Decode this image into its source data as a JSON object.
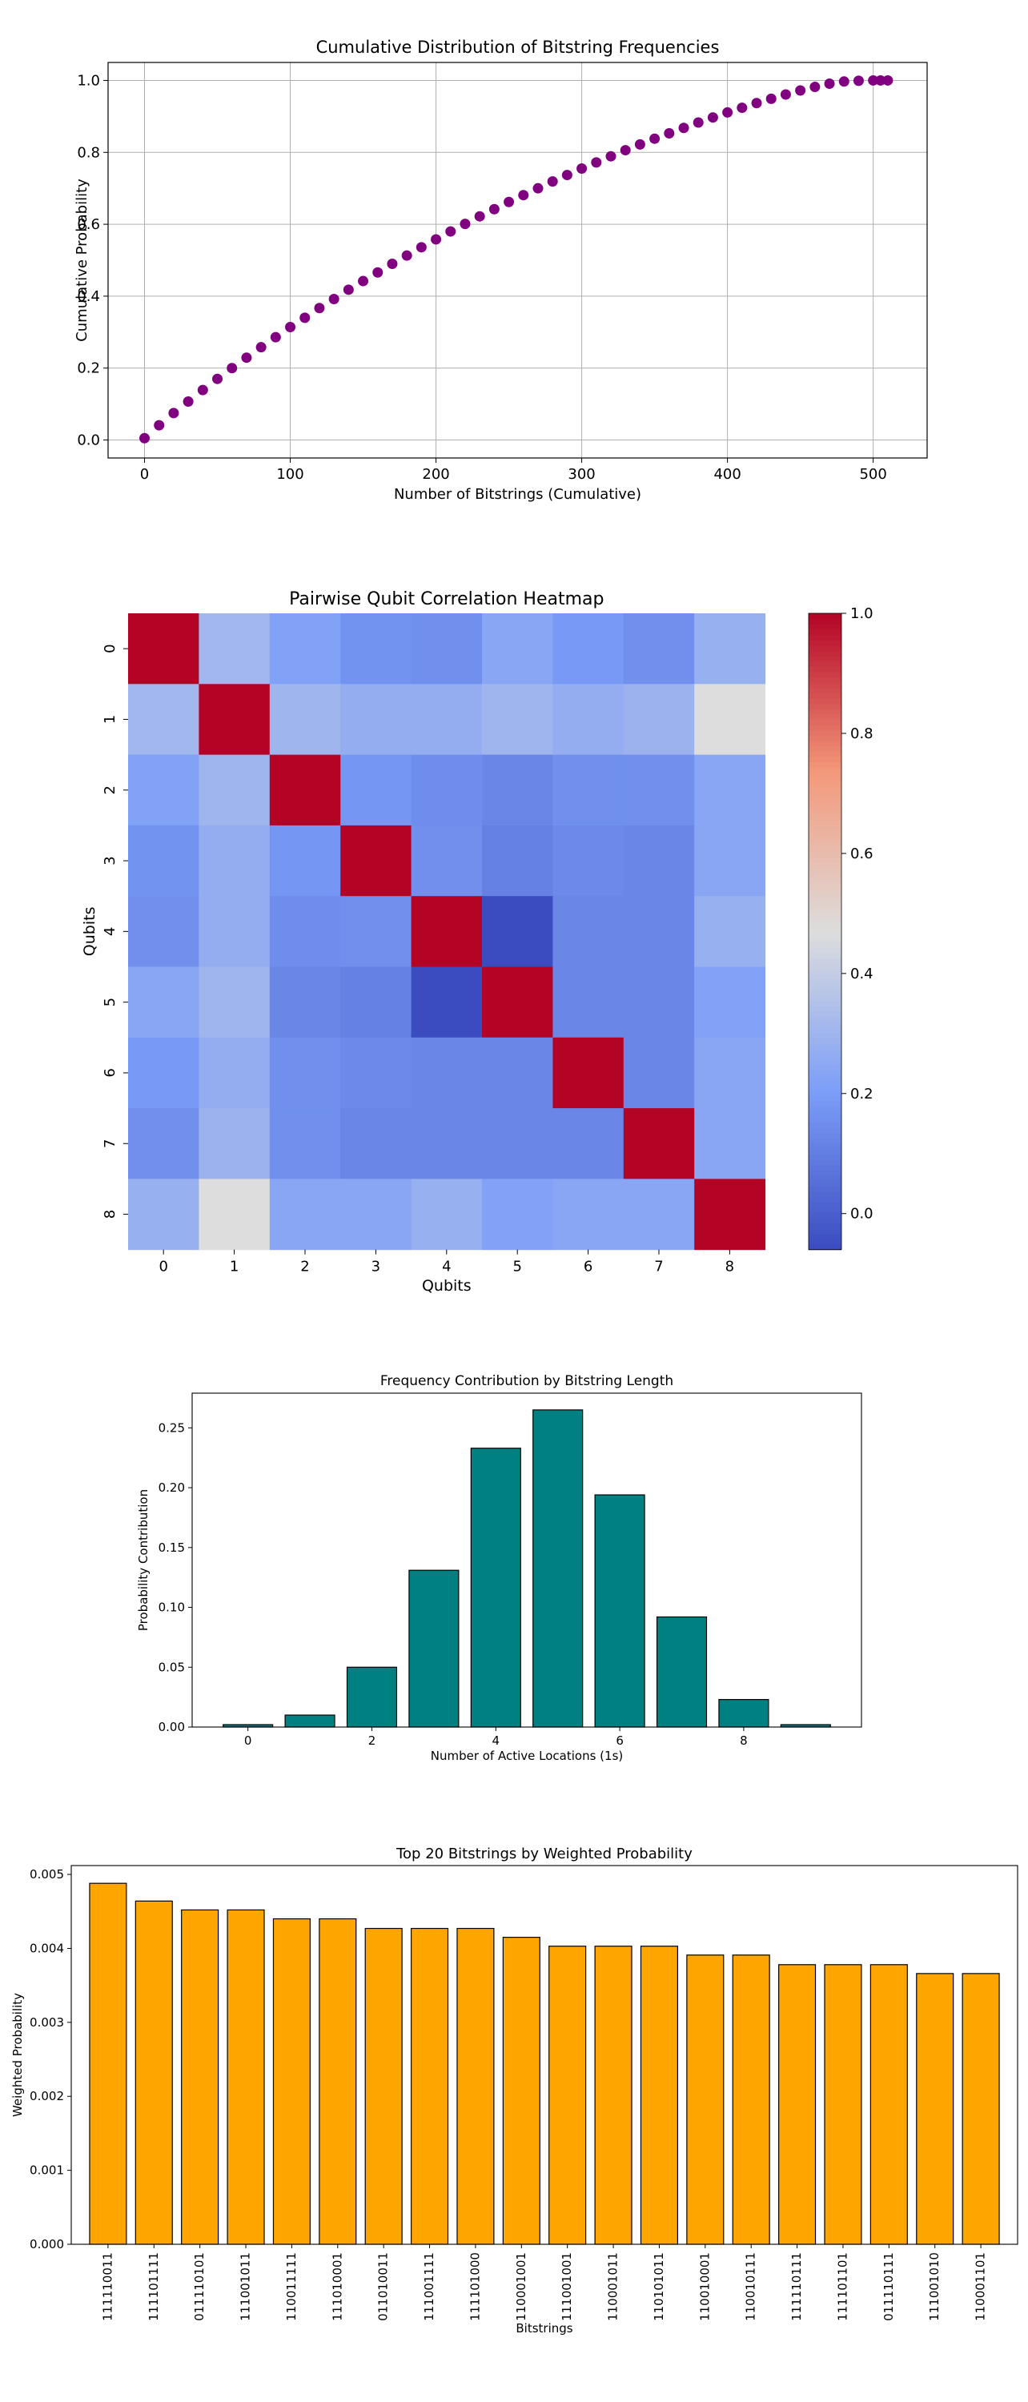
{
  "chart_data": [
    {
      "type": "scatter",
      "title": "Cumulative Distribution of Bitstring Frequencies",
      "xlabel": "Number of Bitstrings (Cumulative)",
      "ylabel": "Cumulative Probability",
      "xlim": [
        -25,
        537
      ],
      "ylim": [
        -0.05,
        1.05
      ],
      "xticks": [
        0,
        100,
        200,
        300,
        400,
        500
      ],
      "yticks": [
        0.0,
        0.2,
        0.4,
        0.6,
        0.8,
        1.0
      ],
      "xtick_labels": [
        "0",
        "100",
        "200",
        "300",
        "400",
        "500"
      ],
      "ytick_labels": [
        "0.0",
        "0.2",
        "0.4",
        "0.6",
        "0.8",
        "1.0"
      ],
      "grid": true,
      "color": "#800080",
      "x": [
        0,
        10,
        20,
        30,
        40,
        50,
        60,
        70,
        80,
        90,
        100,
        110,
        120,
        130,
        140,
        150,
        160,
        170,
        180,
        190,
        200,
        210,
        220,
        230,
        240,
        250,
        260,
        270,
        280,
        290,
        300,
        310,
        320,
        330,
        340,
        350,
        360,
        370,
        380,
        390,
        400,
        410,
        420,
        430,
        440,
        450,
        460,
        470,
        480,
        490,
        500,
        505,
        510
      ],
      "y": [
        0.005,
        0.041,
        0.075,
        0.107,
        0.139,
        0.17,
        0.2,
        0.229,
        0.258,
        0.286,
        0.314,
        0.34,
        0.367,
        0.392,
        0.418,
        0.442,
        0.466,
        0.49,
        0.513,
        0.536,
        0.558,
        0.58,
        0.601,
        0.622,
        0.642,
        0.662,
        0.681,
        0.7,
        0.719,
        0.737,
        0.755,
        0.772,
        0.789,
        0.806,
        0.822,
        0.838,
        0.853,
        0.868,
        0.883,
        0.897,
        0.911,
        0.924,
        0.937,
        0.949,
        0.961,
        0.972,
        0.982,
        0.991,
        0.997,
        0.999,
        1.0,
        1.0,
        1.0
      ]
    },
    {
      "type": "heatmap",
      "title": "Pairwise Qubit Correlation Heatmap",
      "xlabel": "Qubits",
      "ylabel": "Qubits",
      "xticks": [
        "0",
        "1",
        "2",
        "3",
        "4",
        "5",
        "6",
        "7",
        "8"
      ],
      "yticks": [
        "0",
        "1",
        "2",
        "3",
        "4",
        "5",
        "6",
        "7",
        "8"
      ],
      "colormap": "coolwarm",
      "vmin": -0.06,
      "vmax": 1.0,
      "colorbar_ticks": [
        0.0,
        0.2,
        0.4,
        0.6,
        0.8,
        1.0
      ],
      "colorbar_tick_labels": [
        "0.0",
        "0.2",
        "0.4",
        "0.6",
        "0.8",
        "1.0"
      ],
      "matrix": [
        [
          1.0,
          0.31,
          0.22,
          0.17,
          0.16,
          0.24,
          0.19,
          0.16,
          0.28
        ],
        [
          0.31,
          1.0,
          0.3,
          0.27,
          0.27,
          0.3,
          0.27,
          0.29,
          0.47
        ],
        [
          0.22,
          0.3,
          1.0,
          0.18,
          0.15,
          0.13,
          0.16,
          0.16,
          0.24
        ],
        [
          0.17,
          0.27,
          0.18,
          1.0,
          0.16,
          0.11,
          0.14,
          0.13,
          0.24
        ],
        [
          0.16,
          0.27,
          0.15,
          0.16,
          1.0,
          -0.06,
          0.13,
          0.13,
          0.28
        ],
        [
          0.24,
          0.3,
          0.13,
          0.11,
          -0.06,
          1.0,
          0.13,
          0.13,
          0.22
        ],
        [
          0.19,
          0.27,
          0.16,
          0.14,
          0.13,
          0.13,
          1.0,
          0.13,
          0.24
        ],
        [
          0.16,
          0.29,
          0.16,
          0.13,
          0.13,
          0.13,
          0.13,
          1.0,
          0.24
        ],
        [
          0.28,
          0.47,
          0.24,
          0.24,
          0.28,
          0.22,
          0.24,
          0.24,
          1.0
        ]
      ]
    },
    {
      "type": "bar",
      "title": "Frequency Contribution by Bitstring Length",
      "xlabel": "Number of Active Locations (1s)",
      "ylabel": "Probability Contribution",
      "x": [
        0,
        1,
        2,
        3,
        4,
        5,
        6,
        7,
        8,
        9
      ],
      "values": [
        0.002,
        0.01,
        0.05,
        0.131,
        0.233,
        0.265,
        0.194,
        0.092,
        0.023,
        0.002
      ],
      "xlim": [
        -0.9,
        9.9
      ],
      "ylim": [
        0,
        0.279
      ],
      "xticks": [
        0,
        2,
        4,
        6,
        8
      ],
      "xtick_labels": [
        "0",
        "2",
        "4",
        "6",
        "8"
      ],
      "yticks": [
        0.0,
        0.05,
        0.1,
        0.15,
        0.2,
        0.25
      ],
      "ytick_labels": [
        "0.00",
        "0.05",
        "0.10",
        "0.15",
        "0.20",
        "0.25"
      ],
      "color": "#008080",
      "edgecolor": "#000000"
    },
    {
      "type": "bar",
      "title": "Top 20 Bitstrings by Weighted Probability",
      "xlabel": "Bitstrings",
      "ylabel": "Weighted Probability",
      "categories": [
        "111110011",
        "111101111",
        "011110101",
        "111001011",
        "110011111",
        "111010001",
        "011010011",
        "111001111",
        "111101000",
        "110001001",
        "111001001",
        "110001011",
        "110101011",
        "110010001",
        "110010111",
        "111110111",
        "111101101",
        "011110111",
        "111001010",
        "110001101"
      ],
      "values": [
        0.00488,
        0.00464,
        0.00452,
        0.00452,
        0.0044,
        0.0044,
        0.00427,
        0.00427,
        0.00427,
        0.00415,
        0.00403,
        0.00403,
        0.00403,
        0.00391,
        0.00391,
        0.00378,
        0.00378,
        0.00378,
        0.00366,
        0.00366
      ],
      "ylim": [
        0,
        0.00512
      ],
      "yticks": [
        0.0,
        0.001,
        0.002,
        0.003,
        0.004,
        0.005
      ],
      "ytick_labels": [
        "0.000",
        "0.001",
        "0.002",
        "0.003",
        "0.004",
        "0.005"
      ],
      "color": "#ffa500",
      "edgecolor": "#000000"
    }
  ]
}
